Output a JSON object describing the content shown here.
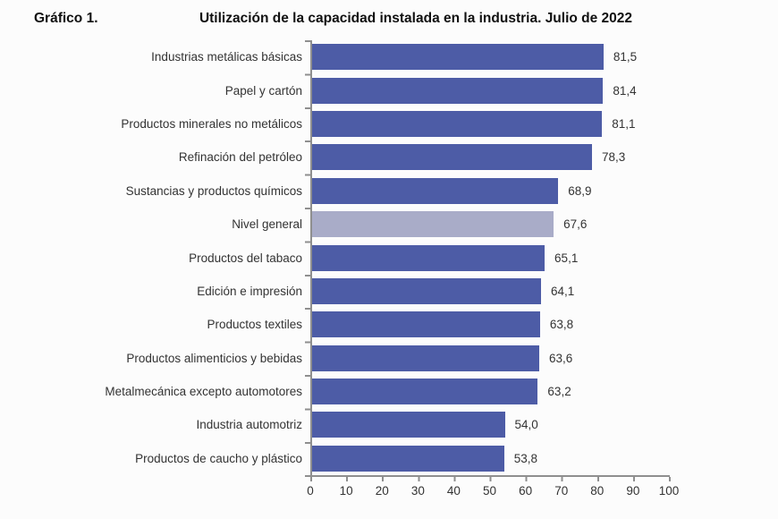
{
  "header": {
    "figure_label": "Gráfico 1.",
    "title": "Utilización de la capacidad instalada en la industria. Julio de 2022"
  },
  "chart_data": {
    "type": "bar",
    "orientation": "horizontal",
    "title": "Utilización de la capacidad instalada en la industria. Julio de 2022",
    "categories": [
      "Industrias metálicas básicas",
      "Papel y cartón",
      "Productos minerales no metálicos",
      "Refinación del petróleo",
      "Sustancias y productos químicos",
      "Nivel general",
      "Productos del tabaco",
      "Edición e impresión",
      "Productos textiles",
      "Productos alimenticios y bebidas",
      "Metalmecánica excepto automotores",
      "Industria automotriz",
      "Productos de caucho y plástico"
    ],
    "values": [
      81.5,
      81.4,
      81.1,
      78.3,
      68.9,
      67.6,
      65.1,
      64.1,
      63.8,
      63.6,
      63.2,
      54.0,
      53.8
    ],
    "value_labels": [
      "81,5",
      "81,4",
      "81,1",
      "78,3",
      "68,9",
      "67,6",
      "65,1",
      "64,1",
      "63,8",
      "63,6",
      "63,2",
      "54,0",
      "53,8"
    ],
    "highlight_category": "Nivel general",
    "highlight_index": 5,
    "xlabel": "",
    "ylabel": "",
    "xlim": [
      0,
      100
    ],
    "x_ticks": [
      "0",
      "10",
      "20",
      "30",
      "40",
      "50",
      "60",
      "70",
      "80",
      "90",
      "100"
    ],
    "grid": "off",
    "legend": "none",
    "value_label_position": "end-of-bar"
  },
  "colors": {
    "bar": "#4D5CA6",
    "highlight_bar": "#A9ACC8",
    "axis": "#8F8F8F",
    "label_text": "#333333",
    "title_text": "#111111"
  }
}
